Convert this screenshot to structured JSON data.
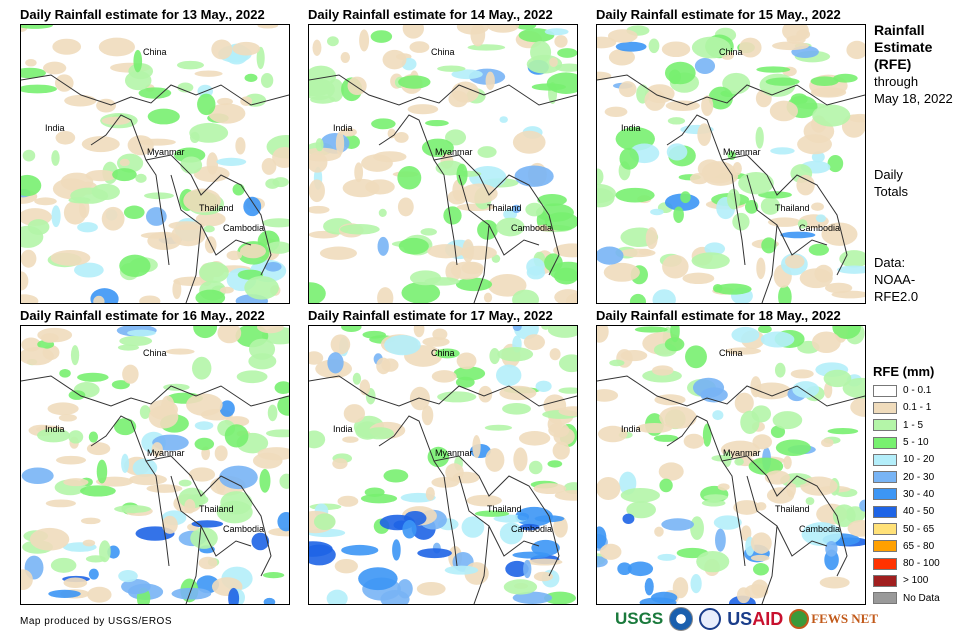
{
  "panels": [
    {
      "title": "Daily Rainfall estimate for 13 May., 2022"
    },
    {
      "title": "Daily Rainfall estimate for 14 May., 2022"
    },
    {
      "title": "Daily Rainfall estimate for 15 May., 2022"
    },
    {
      "title": "Daily Rainfall estimate for 16 May., 2022"
    },
    {
      "title": "Daily Rainfall estimate for 17 May., 2022"
    },
    {
      "title": "Daily Rainfall estimate for 18 May., 2022"
    }
  ],
  "map_labels": {
    "china": "China",
    "india": "India",
    "myanmar": "Myanmar",
    "thailand": "Thailand",
    "cambodia": "Cambodia"
  },
  "side": {
    "title_1": "Rainfall",
    "title_2": "Estimate",
    "title_3": "(RFE)",
    "through": "through",
    "date": "May 18, 2022",
    "daily_1": "Daily",
    "daily_2": "Totals",
    "data_1": "Data:",
    "data_2": "NOAA-",
    "data_3": "RFE2.0"
  },
  "legend": {
    "title": "RFE (mm)",
    "items": [
      {
        "label": "0 - 0.1",
        "color": "#ffffff"
      },
      {
        "label": "0.1 - 1",
        "color": "#f0dcbc"
      },
      {
        "label": "1 - 5",
        "color": "#b4f5a8"
      },
      {
        "label": "5 - 10",
        "color": "#78f070"
      },
      {
        "label": "10 - 20",
        "color": "#b4eefa"
      },
      {
        "label": "20 - 30",
        "color": "#78b4f5"
      },
      {
        "label": "30 - 40",
        "color": "#3c96f5"
      },
      {
        "label": "40 - 50",
        "color": "#1e64e6"
      },
      {
        "label": "50 - 65",
        "color": "#ffe178"
      },
      {
        "label": "65 - 80",
        "color": "#ffa000"
      },
      {
        "label": "80 - 100",
        "color": "#ff3200"
      },
      {
        "label": "> 100",
        "color": "#a01e1e"
      },
      {
        "label": "No Data",
        "color": "#999999"
      }
    ]
  },
  "footer": {
    "credit": "Map produced by USGS/EROS",
    "logos": {
      "usgs": "USGS",
      "usaid_a": "US",
      "usaid_b": "AID",
      "fews": "FEWS NET"
    }
  }
}
